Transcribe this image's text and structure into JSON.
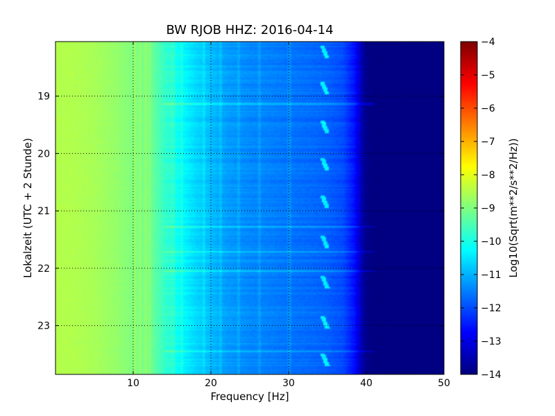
{
  "chart_data": {
    "type": "heatmap",
    "title": "BW RJOB HHZ: 2016-04-14",
    "xlabel": "Frequency [Hz]",
    "ylabel": "Lokalzeit (UTC + 2 Stunde)",
    "colorbar_label": "Log10(Sqrt(m**2/s**2/Hz))",
    "xlim": [
      0,
      50
    ],
    "ylim": [
      18.05,
      23.85
    ],
    "y_inverted": true,
    "clim": [
      -14,
      -4
    ],
    "colormap": "jet",
    "grid": true,
    "x_ticks": [
      "10",
      "20",
      "30",
      "40",
      "50"
    ],
    "y_ticks": [
      "19",
      "20",
      "21",
      "22",
      "23"
    ],
    "colorbar_ticks": [
      "−4",
      "−5",
      "−6",
      "−7",
      "−8",
      "−9",
      "−10",
      "−11",
      "−12",
      "−13",
      "−14"
    ],
    "spectrum_profile": {
      "frequency_hz": [
        0,
        2,
        5,
        8,
        10,
        12,
        14,
        16,
        18,
        20,
        22,
        25,
        28,
        30,
        33,
        35,
        37,
        38.5,
        39.5,
        40.5,
        50
      ],
      "log10_amplitude": [
        -8.5,
        -8.5,
        -8.6,
        -8.8,
        -9.0,
        -9.1,
        -9.7,
        -10.2,
        -10.6,
        -10.9,
        -11.2,
        -11.4,
        -11.5,
        -11.6,
        -11.7,
        -11.8,
        -12.0,
        -12.6,
        -13.6,
        -14.0,
        -14.0
      ]
    },
    "features": {
      "vertical_lines_hz": [
        10.2,
        10.9,
        11.6,
        12.1,
        15.1,
        16.2,
        19.1,
        21.2,
        23.6,
        26.2,
        30.1
      ],
      "horizontal_bands_local_time": [
        19.14,
        21.28,
        21.72,
        22.05,
        23.45
      ],
      "tonal_bursts": {
        "frequency_hz": 34.7,
        "local_times": [
          18.15,
          18.78,
          19.45,
          20.1,
          20.75,
          21.45,
          22.15,
          22.85,
          23.5
        ]
      }
    }
  }
}
